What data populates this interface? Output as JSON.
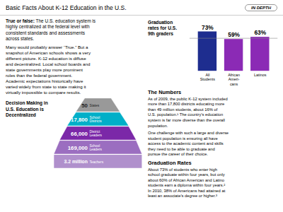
{
  "chart_data": [
    {
      "type": "bar",
      "title": "Graduation\nrates for U.S.\n9th graders",
      "categories": [
        "All\nStudents",
        "African\nAmeri-\ncans",
        "Latinos"
      ],
      "values": [
        73,
        59,
        63
      ],
      "value_labels": [
        "73%",
        "59%",
        "63%"
      ],
      "colors": [
        "#1e2d8f",
        "#8b2ab5",
        "#8b2ab5"
      ],
      "ylim": [
        0,
        92
      ],
      "data_labels": true,
      "tick_labels": "x",
      "grid": false,
      "rule": {
        "y": 61,
        "color": "#888888"
      },
      "annotations": [
        "Basic Facts About K-12 Education in the U.S.",
        "IN DEPTH",
        "True or false:",
        " The U.S. education system is\nhighly centralized at the federal level with\nconsistent standards and assessments\nacross states.",
        "Many would probably answer “True.” But a\nsnapshot of American schools shows a very\ndifferent picture. K-12 education is diffuse\nand decentralized. Local school boards and\nstate governments play more prominent\nroles than the federal government.\nAcademic expectations historically have\nvaried widely from state to state making it\nvirtually impossible to compare results.",
        "The Numbers",
        "As of 2009, the public K-12 system included\nmore than 17,800 districts educating more\nthan 49 million students, about 16% of\nU.S. population.¹ The country’s education\nsystem is far more diverse than the overall\npopulation.",
        "One challenge with such a large and diverse\nstudent population is ensuring all have\naccess to the academic content and skills\nthey need to be able to graduate and\npursue the career of their choice.",
        "Graduation Rates",
        "About 73% of students who enter high\nschool graduate within four years, but only\nabout 60% of African American and Latino\nstudents earn a diploma within four years.²\nIn 2010, 38% of Americans had attained at\nleast an associate’s degree or higher.³"
      ]
    },
    {
      "type": "pyramid",
      "title": "Decision Making in\nU.S. Education is\nDecentralized",
      "tick_labels": false,
      "layers": [
        {
          "label": "50",
          "sublabel": "States",
          "color": "#999999"
        },
        {
          "label": "17,800",
          "sublabel": "School\nDistricts",
          "color": "#00afc8"
        },
        {
          "label": "66,000",
          "sublabel": "District\nLeaders",
          "color": "#7b28a8"
        },
        {
          "label": "169,000",
          "sublabel": "School\nLeaders",
          "color": "#9b6ec0"
        },
        {
          "label": "3.2 million",
          "sublabel": "Teachers",
          "color": "#b090cc"
        }
      ]
    }
  ]
}
